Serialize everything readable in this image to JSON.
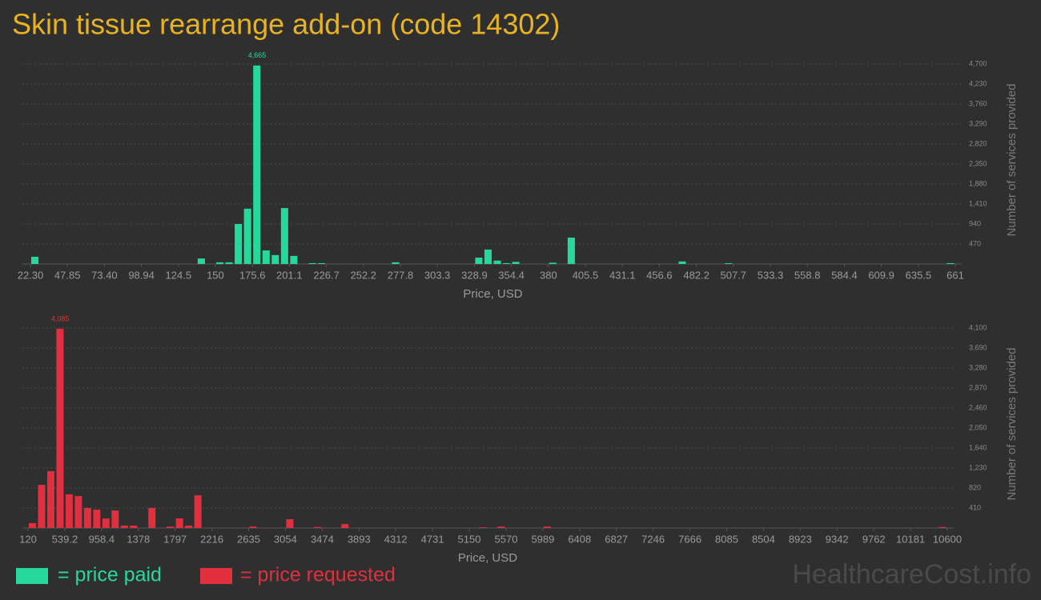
{
  "title": "Skin tissue rearrange add-on (code 14302)",
  "watermark": "HealthcareCost.info",
  "chart_data": [
    {
      "type": "histogram",
      "x_label": "Price, USD",
      "y_label": "Number of services provided",
      "grid": true,
      "bins": [
        22.3,
        28.69,
        35.07,
        41.46,
        47.85,
        54.24,
        60.62,
        67.01,
        73.4,
        79.78,
        86.17,
        92.56,
        98.94,
        105.33,
        111.72,
        118.11,
        124.49,
        130.88,
        137.27,
        143.65,
        150.04,
        156.43,
        162.81,
        169.2,
        175.59,
        181.98,
        188.36,
        194.75,
        201.14,
        207.52,
        213.91,
        220.3,
        226.68,
        233.07,
        239.46,
        245.85,
        252.23,
        258.62,
        265.01,
        271.39,
        277.78,
        284.17,
        290.55,
        296.94,
        303.33,
        309.72,
        316.1,
        322.49,
        328.88,
        335.26,
        341.65,
        348.04,
        354.42,
        360.81,
        367.2,
        373.59,
        379.97,
        386.36,
        392.75,
        399.13,
        405.52,
        411.91,
        418.29,
        424.68,
        431.07,
        437.46,
        443.84,
        450.23,
        456.62,
        463,
        469.39,
        475.78,
        482.16,
        488.55,
        494.94,
        501.33,
        507.71,
        514.1,
        520.49,
        526.87,
        533.26,
        539.65,
        546.03,
        552.42,
        558.81,
        565.2,
        571.58,
        577.97,
        584.36,
        590.74,
        597.13,
        603.52,
        609.9,
        616.29,
        622.68,
        629.07,
        635.45,
        641.84,
        648.23,
        654.61,
        661
      ],
      "series": [
        {
          "name": "= price paid",
          "color": "#27d89b",
          "values": [
            170,
            0,
            0,
            0,
            0,
            0,
            0,
            0,
            0,
            0,
            0,
            0,
            0,
            0,
            0,
            0,
            0,
            0,
            130,
            0,
            40,
            40,
            940,
            1300,
            4665,
            320,
            210,
            1315,
            190,
            0,
            20,
            20,
            0,
            0,
            0,
            0,
            0,
            0,
            0,
            40,
            0,
            0,
            0,
            0,
            0,
            0,
            0,
            0,
            150,
            340,
            80,
            20,
            50,
            0,
            0,
            0,
            30,
            0,
            620,
            0,
            0,
            0,
            0,
            0,
            0,
            0,
            0,
            0,
            0,
            0,
            60,
            0,
            0,
            0,
            0,
            20,
            0,
            0,
            0,
            0,
            0,
            0,
            0,
            0,
            0,
            0,
            0,
            0,
            0,
            0,
            0,
            0,
            0,
            0,
            0,
            0,
            0,
            0,
            0,
            20
          ]
        }
      ],
      "value_labels": {
        "24": "4,665"
      },
      "xlim": [
        22.3,
        661
      ],
      "ylim": [
        0,
        4700
      ],
      "xticks": [
        {
          "value": 22.3,
          "label": "22.30"
        },
        47.85,
        {
          "value": 73.4,
          "label": "73.40"
        },
        98.94,
        124.5,
        150,
        175.6,
        201.1,
        226.7,
        252.2,
        277.8,
        303.3,
        328.9,
        354.4,
        380,
        405.5,
        431.1,
        456.6,
        482.2,
        507.7,
        533.3,
        558.8,
        584.4,
        609.9,
        635.5,
        661
      ],
      "yticks": [
        470,
        940,
        {
          "value": 1410,
          "label": "1,410"
        },
        {
          "value": 1880,
          "label": "1,880"
        },
        {
          "value": 2350,
          "label": "2,350"
        },
        {
          "value": 2820,
          "label": "2,820"
        },
        {
          "value": 3290,
          "label": "3,290"
        },
        {
          "value": 3760,
          "label": "3,760"
        },
        {
          "value": 4230,
          "label": "4,230"
        },
        {
          "value": 4700,
          "label": "4,700"
        }
      ]
    },
    {
      "type": "histogram",
      "x_label": "Price, USD",
      "y_label": "Number of services provided",
      "grid": true,
      "bins": [
        120,
        224.8,
        329.6,
        434.4,
        539.2,
        644,
        748.8,
        853.6,
        958.4,
        1063.2,
        1168,
        1272.8,
        1377.6,
        1482.4,
        1587.2,
        1692,
        1796.8,
        1901.6,
        2006.4,
        2111.2,
        2216,
        2320.8,
        2425.6,
        2530.4,
        2635.2,
        2740,
        2844.8,
        2949.6,
        3054.4,
        3159.2,
        3264,
        3368.8,
        3473.6,
        3578.4,
        3683.2,
        3788,
        3892.8,
        3997.6,
        4102.4,
        4207.2,
        4312,
        4416.8,
        4521.6,
        4626.4,
        4731.2,
        4836,
        4940.8,
        5045.6,
        5150.4,
        5255.2,
        5360,
        5464.8,
        5569.6,
        5674.4,
        5779.2,
        5884,
        5988.8,
        6093.6,
        6198.4,
        6303.2,
        6408,
        6512.8,
        6617.6,
        6722.4,
        6827.2,
        6932,
        7036.8,
        7141.6,
        7246.4,
        7351.2,
        7456,
        7560.8,
        7665.6,
        7770.4,
        7875.2,
        7980,
        8084.8,
        8189.6,
        8294.4,
        8399.2,
        8504,
        8608.8,
        8713.6,
        8818.4,
        8923.2,
        9028,
        9132.8,
        9237.6,
        9342.4,
        9447.2,
        9552,
        9656.8,
        9761.6,
        9866.4,
        9971.2,
        10076,
        10180.8,
        10285.6,
        10390.4,
        10495.2,
        10600
      ],
      "series": [
        {
          "name": "= price requested",
          "color": "#e0303f",
          "values": [
            100,
            885,
            1165,
            4085,
            690,
            655,
            410,
            375,
            195,
            360,
            50,
            50,
            0,
            410,
            0,
            30,
            195,
            50,
            670,
            0,
            0,
            0,
            0,
            0,
            30,
            0,
            0,
            0,
            180,
            0,
            0,
            20,
            0,
            0,
            80,
            0,
            0,
            0,
            0,
            0,
            0,
            0,
            0,
            0,
            0,
            0,
            0,
            0,
            0,
            15,
            0,
            30,
            0,
            0,
            0,
            0,
            30,
            0,
            0,
            0,
            0,
            0,
            0,
            0,
            0,
            0,
            0,
            0,
            0,
            0,
            0,
            0,
            0,
            0,
            0,
            0,
            0,
            0,
            0,
            0,
            0,
            0,
            0,
            0,
            0,
            0,
            0,
            0,
            0,
            0,
            0,
            0,
            0,
            0,
            0,
            0,
            0,
            0,
            0,
            20
          ]
        }
      ],
      "value_labels": {
        "3": "4,085"
      },
      "xlim": [
        120,
        10600
      ],
      "ylim": [
        0,
        4100
      ],
      "xticks": [
        120,
        539.2,
        958.4,
        1378,
        1797,
        2216,
        2635,
        3054,
        3474,
        3893,
        4312,
        4731,
        5150,
        5570,
        5989,
        6408,
        6827,
        7246,
        7666,
        8085,
        8504,
        8923,
        9342,
        9762,
        10181,
        10600
      ],
      "yticks": [
        410,
        820,
        {
          "value": 1230,
          "label": "1,230"
        },
        {
          "value": 1640,
          "label": "1,640"
        },
        {
          "value": 2050,
          "label": "2,050"
        },
        {
          "value": 2460,
          "label": "2,460"
        },
        {
          "value": 2870,
          "label": "2,870"
        },
        {
          "value": 3280,
          "label": "3,280"
        },
        {
          "value": 3690,
          "label": "3,690"
        },
        {
          "value": 4100,
          "label": "4,100"
        }
      ]
    }
  ]
}
